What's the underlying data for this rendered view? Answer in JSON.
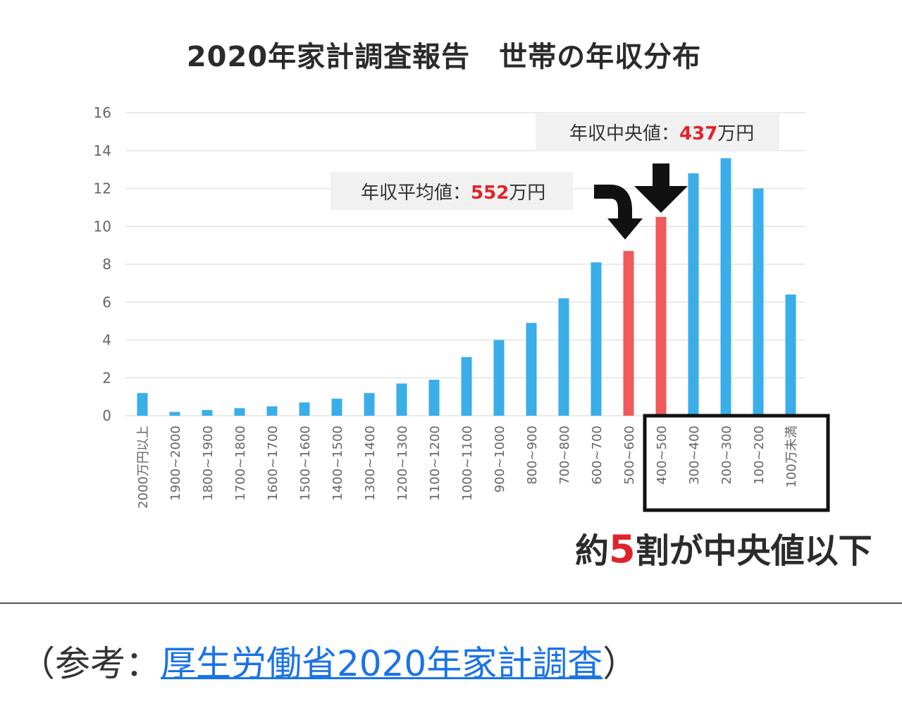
{
  "chart_data": {
    "type": "bar",
    "title": "2020年家計調査報告　世帯の年収分布",
    "xlabel": "",
    "ylabel": "",
    "ylim": [
      0,
      16
    ],
    "yticks": [
      0,
      2,
      4,
      6,
      8,
      10,
      12,
      14,
      16
    ],
    "grid": true,
    "categories": [
      "2000万円以上",
      "1900~2000",
      "1800~1900",
      "1700~1800",
      "1600~1700",
      "1500~1600",
      "1400~1500",
      "1300~1400",
      "1200~1300",
      "1100~1200",
      "1000~1100",
      "900~1000",
      "800~900",
      "700~800",
      "600~700",
      "500~600",
      "400~500",
      "300~400",
      "200~300",
      "100~200",
      "100万未満"
    ],
    "values": [
      1.2,
      0.2,
      0.3,
      0.4,
      0.5,
      0.7,
      0.9,
      1.2,
      1.7,
      1.9,
      3.1,
      4.0,
      4.9,
      6.2,
      8.1,
      8.7,
      10.5,
      12.8,
      13.6,
      12.0,
      6.4
    ],
    "highlighted": [
      "500~600",
      "400~500"
    ],
    "colors": {
      "bar": "#3aaee8",
      "highlight": "#f05a5a",
      "grid": "#e3e3e3",
      "tick": "#666666"
    },
    "annotations": {
      "median": {
        "prefix": "年収中央値：",
        "value": "437",
        "suffix": "万円"
      },
      "mean": {
        "prefix": "年収平均値：",
        "value": "552",
        "suffix": "万円"
      },
      "arrow_icons": [
        "curved-arrow-down-icon",
        "arrow-down-icon"
      ]
    }
  },
  "conclusion": {
    "prefix": "約",
    "number": "5",
    "suffix": "割が中央値以下"
  },
  "footer": {
    "open": "（参考：",
    "link_text": "厚生労働省2020年家計調査",
    "close": "）"
  }
}
